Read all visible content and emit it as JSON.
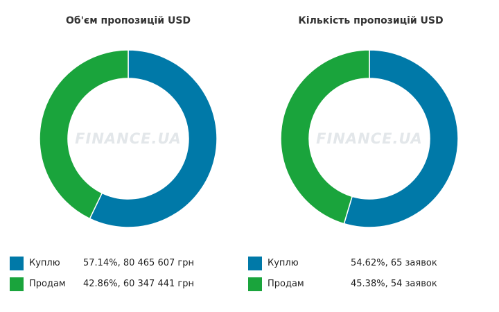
{
  "colors": {
    "buy": "#0079a8",
    "sell": "#1aa43c",
    "watermark": "#e3e7ea"
  },
  "watermark": "FINANCE.UA",
  "chart_data": [
    {
      "type": "pie",
      "title": "Об'єм пропозицій USD",
      "series": [
        {
          "name": "Куплю",
          "percent": 57.14,
          "value_label": "57.14%, 80 465 607 грн"
        },
        {
          "name": "Продам",
          "percent": 42.86,
          "value_label": "42.86%, 60 347 441 грн"
        }
      ]
    },
    {
      "type": "pie",
      "title": "Кількість пропозицій USD",
      "series": [
        {
          "name": "Куплю",
          "percent": 54.62,
          "value_label": "54.62%, 65 заявок"
        },
        {
          "name": "Продам",
          "percent": 45.38,
          "value_label": "45.38%, 54 заявок"
        }
      ]
    }
  ]
}
